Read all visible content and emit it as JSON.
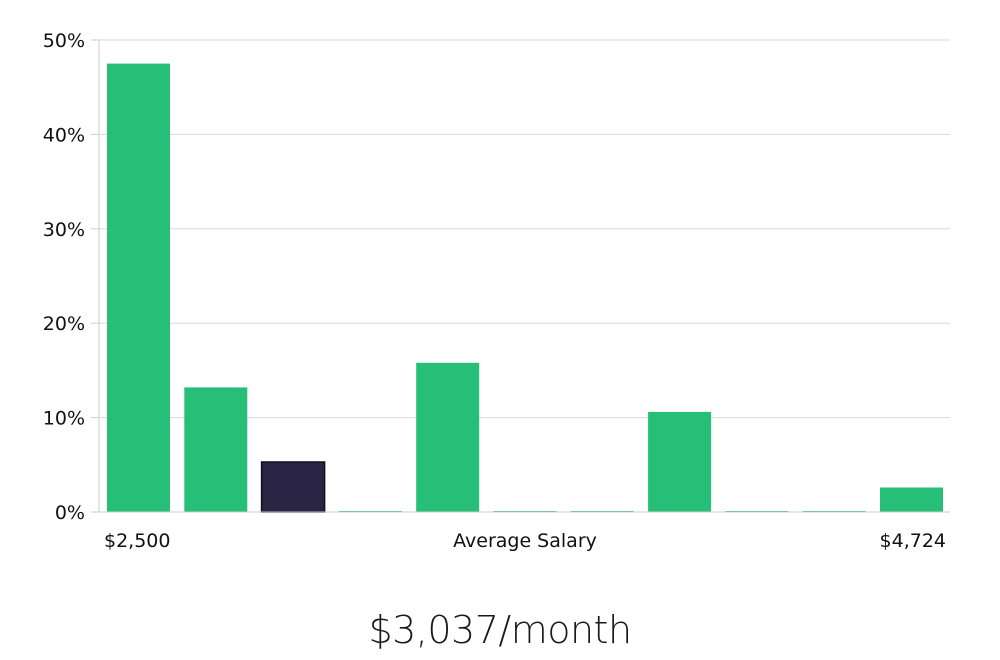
{
  "colors": {
    "bar": "#27be78",
    "bar_highlight": "#2a2545",
    "bar_highlight_stroke": "#0f0d24",
    "grid": "#d9d9d9",
    "axis": "#cccccc"
  },
  "headline": "$3,037/month",
  "chart_data": {
    "type": "bar",
    "title": "",
    "xlabel": "Average Salary",
    "ylabel": "",
    "x_min_label": "$2,500",
    "x_max_label": "$4,724",
    "ylim": [
      0,
      50
    ],
    "y_ticks": [
      0,
      10,
      20,
      30,
      40,
      50
    ],
    "y_tick_labels": [
      "0%",
      "10%",
      "20%",
      "30%",
      "40%",
      "50%"
    ],
    "grid": true,
    "values": [
      47.5,
      13.2,
      5.3,
      0.1,
      15.8,
      0.1,
      0.1,
      10.6,
      0.1,
      0.1,
      2.6
    ],
    "highlight_index": 2
  }
}
